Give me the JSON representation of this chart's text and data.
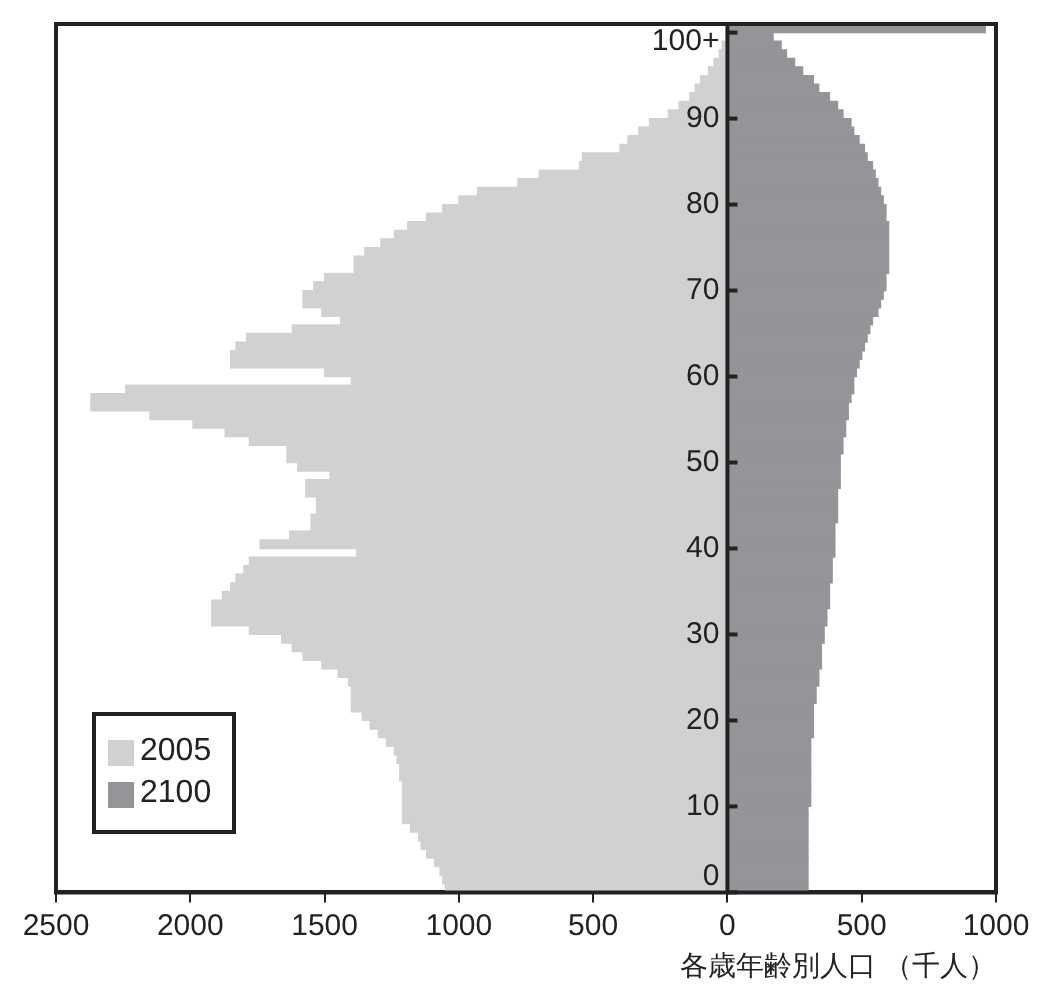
{
  "chart_data": {
    "type": "bar",
    "orientation": "horizontal",
    "xlabel": "各歳年齢別人口 （千人）",
    "categories": [
      "100+",
      null,
      null,
      null,
      null,
      null,
      null,
      null,
      null,
      null,
      "90",
      null,
      null,
      null,
      null,
      null,
      null,
      null,
      null,
      null,
      "80",
      null,
      null,
      null,
      null,
      null,
      null,
      null,
      null,
      null,
      "70",
      null,
      null,
      null,
      null,
      null,
      null,
      null,
      null,
      null,
      "60",
      null,
      null,
      null,
      null,
      null,
      null,
      null,
      null,
      null,
      "50",
      null,
      null,
      null,
      null,
      null,
      null,
      null,
      null,
      null,
      "40",
      null,
      null,
      null,
      null,
      null,
      null,
      null,
      null,
      null,
      "30",
      null,
      null,
      null,
      null,
      null,
      null,
      null,
      null,
      null,
      "20",
      null,
      null,
      null,
      null,
      null,
      null,
      null,
      null,
      null,
      "10",
      null,
      null,
      null,
      null,
      null,
      null,
      null,
      null,
      null,
      "0"
    ],
    "xlim": [
      -2500,
      1000
    ],
    "xticks": [
      {
        "value": -2500,
        "label": "2500"
      },
      {
        "value": -2000,
        "label": "2000"
      },
      {
        "value": -1500,
        "label": "1500"
      },
      {
        "value": -1000,
        "label": "1000"
      },
      {
        "value": -500,
        "label": "500"
      },
      0,
      500,
      1000
    ],
    "legend": "bottom left",
    "stacked": true,
    "series": [
      {
        "name": "2005",
        "color": "#d0d1d3",
        "values": [
          null,
          null,
          -20,
          -30,
          -50,
          -70,
          -100,
          -120,
          -140,
          -180,
          -220,
          -290,
          -330,
          -370,
          -400,
          -540,
          -550,
          -700,
          -780,
          -930,
          -1000,
          -1060,
          -1120,
          -1190,
          -1240,
          -1290,
          -1350,
          -1390,
          -1390,
          -1500,
          -1540,
          -1580,
          -1580,
          -1510,
          -1440,
          -1620,
          -1790,
          -1830,
          -1850,
          -1850,
          -1500,
          -1400,
          -2240,
          -2370,
          -2370,
          -2150,
          -1990,
          -1870,
          -1780,
          -1640,
          -1640,
          -1600,
          -1480,
          -1570,
          -1570,
          -1530,
          -1530,
          -1550,
          -1550,
          -1630,
          -1740,
          -1380,
          -1780,
          -1800,
          -1830,
          -1850,
          -1880,
          -1920,
          -1920,
          -1920,
          -1780,
          -1660,
          -1620,
          -1580,
          -1510,
          -1450,
          -1410,
          -1400,
          -1400,
          -1400,
          -1360,
          -1330,
          -1300,
          -1270,
          -1240,
          -1230,
          -1220,
          -1220,
          -1210,
          -1210,
          -1210,
          -1210,
          -1210,
          -1180,
          -1150,
          -1140,
          -1120,
          -1090,
          -1070,
          -1060,
          -1050
        ]
      },
      {
        "name": "2100",
        "color": "#939598",
        "values": [
          960,
          170,
          200,
          220,
          250,
          280,
          320,
          340,
          380,
          410,
          430,
          460,
          470,
          490,
          510,
          520,
          540,
          550,
          560,
          570,
          580,
          590,
          590,
          600,
          600,
          600,
          600,
          600,
          600,
          590,
          590,
          580,
          570,
          560,
          540,
          530,
          520,
          510,
          500,
          490,
          480,
          470,
          470,
          460,
          450,
          450,
          440,
          440,
          430,
          430,
          420,
          420,
          420,
          420,
          410,
          410,
          410,
          410,
          400,
          400,
          400,
          400,
          390,
          390,
          390,
          380,
          380,
          380,
          370,
          370,
          360,
          360,
          350,
          350,
          350,
          340,
          340,
          330,
          330,
          320,
          320,
          320,
          320,
          310,
          310,
          310,
          310,
          310,
          310,
          310,
          310,
          300,
          300,
          300,
          300,
          300,
          300,
          300,
          300,
          300,
          300
        ]
      }
    ]
  }
}
